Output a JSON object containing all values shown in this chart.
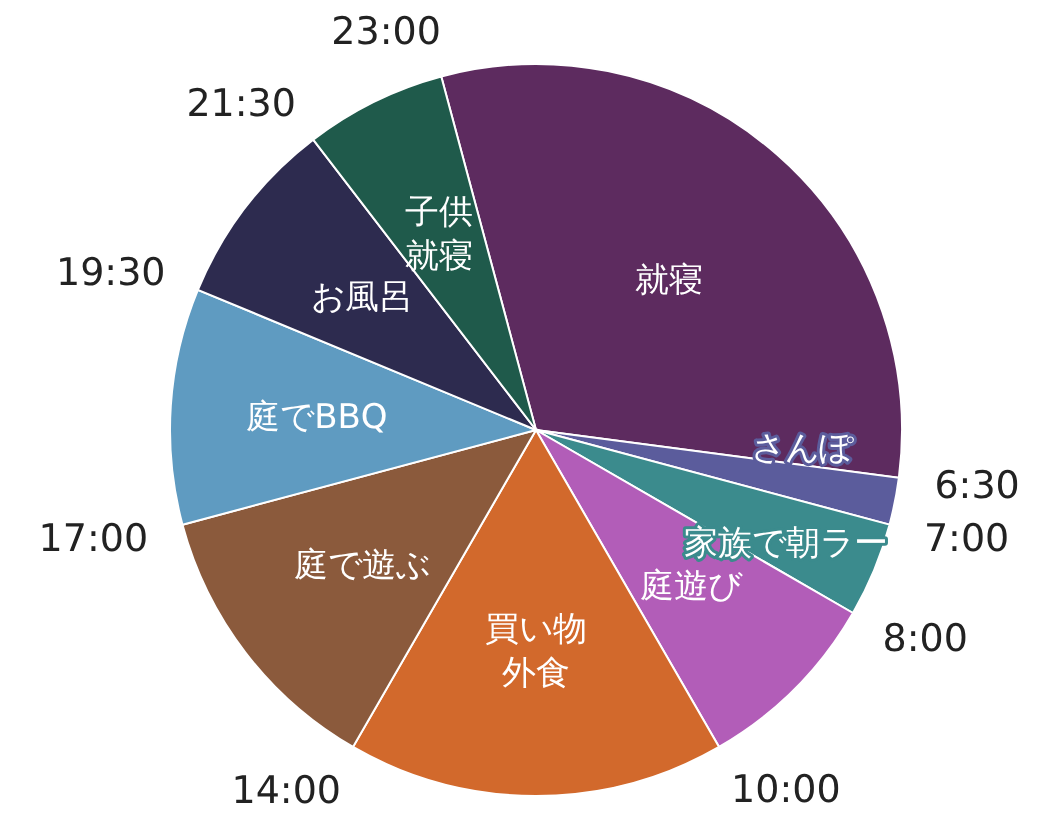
{
  "chart_data": {
    "type": "pie",
    "categories": [
      "就寝",
      "さんぽ",
      "家族で朝ラー",
      "庭遊び",
      "買い物外食",
      "庭で遊ぶ",
      "庭でBBQ",
      "お風呂",
      "子供就寝"
    ],
    "values": [
      31.25,
      2.08,
      4.17,
      8.33,
      16.67,
      12.5,
      10.42,
      8.33,
      6.25
    ],
    "colors": [
      "#5d2b5f",
      "#5b5c9c",
      "#3b8b8d",
      "#b25db8",
      "#d2692c",
      "#8b5a3c",
      "#5f9bc1",
      "#2d2b4f",
      "#1f5a4b"
    ],
    "annotations": [
      "23:00",
      "6:30",
      "7:00",
      "8:00",
      "10:00",
      "14:00",
      "17:00",
      "19:30",
      "21:30"
    ],
    "legend": false
  }
}
